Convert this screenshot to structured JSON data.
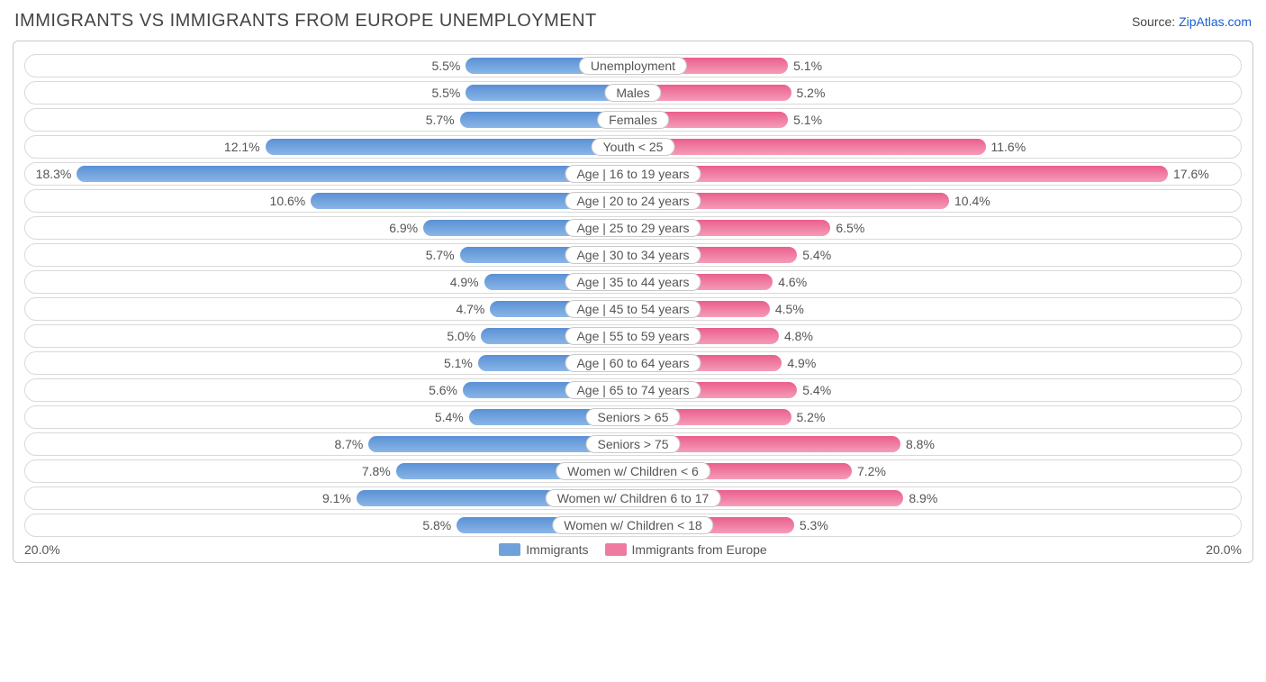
{
  "title": "IMMIGRANTS VS IMMIGRANTS FROM EUROPE UNEMPLOYMENT",
  "source_prefix": "Source: ",
  "source_name": "ZipAtlas.com",
  "chart": {
    "type": "diverging-bar",
    "max_pct": 20.0,
    "axis_label": "20.0%",
    "track_border": "#d9d9d9",
    "box_border": "#c9c9c9",
    "left": {
      "name": "Immigrants",
      "fill": "#6fa1db",
      "grad_a": "#5a90d4",
      "grad_b": "#8ab6e6"
    },
    "right": {
      "name": "Immigrants from Europe",
      "fill": "#ef7ba0",
      "grad_a": "#ea5f8d",
      "grad_b": "#f59cb8"
    },
    "rows": [
      {
        "label": "Unemployment",
        "l": 5.5,
        "r": 5.1
      },
      {
        "label": "Males",
        "l": 5.5,
        "r": 5.2
      },
      {
        "label": "Females",
        "l": 5.7,
        "r": 5.1
      },
      {
        "label": "Youth < 25",
        "l": 12.1,
        "r": 11.6
      },
      {
        "label": "Age | 16 to 19 years",
        "l": 18.3,
        "r": 17.6
      },
      {
        "label": "Age | 20 to 24 years",
        "l": 10.6,
        "r": 10.4
      },
      {
        "label": "Age | 25 to 29 years",
        "l": 6.9,
        "r": 6.5
      },
      {
        "label": "Age | 30 to 34 years",
        "l": 5.7,
        "r": 5.4
      },
      {
        "label": "Age | 35 to 44 years",
        "l": 4.9,
        "r": 4.6
      },
      {
        "label": "Age | 45 to 54 years",
        "l": 4.7,
        "r": 4.5
      },
      {
        "label": "Age | 55 to 59 years",
        "l": 5.0,
        "r": 4.8
      },
      {
        "label": "Age | 60 to 64 years",
        "l": 5.1,
        "r": 4.9
      },
      {
        "label": "Age | 65 to 74 years",
        "l": 5.6,
        "r": 5.4
      },
      {
        "label": "Seniors > 65",
        "l": 5.4,
        "r": 5.2
      },
      {
        "label": "Seniors > 75",
        "l": 8.7,
        "r": 8.8
      },
      {
        "label": "Women w/ Children < 6",
        "l": 7.8,
        "r": 7.2
      },
      {
        "label": "Women w/ Children 6 to 17",
        "l": 9.1,
        "r": 8.9
      },
      {
        "label": "Women w/ Children < 18",
        "l": 5.8,
        "r": 5.3
      }
    ]
  }
}
